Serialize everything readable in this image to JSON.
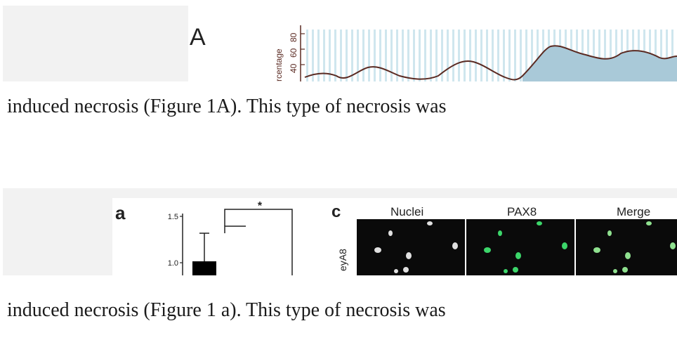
{
  "example_1": {
    "figure": {
      "panel_label": "A",
      "axis_label_fragment": "rcentage",
      "tick_labels": [
        "80",
        "60",
        "40"
      ]
    },
    "caption": "induced necrosis (Figure 1A). This type of necrosis was"
  },
  "example_2": {
    "figure": {
      "panel_a_label": "a",
      "panel_c_label": "c",
      "y_ticks": [
        "1.5",
        "1.0"
      ],
      "significance_mark": "*",
      "column_headers": [
        "Nuclei",
        "PAX8",
        "Merge"
      ],
      "row_label_fragment": "eyA8"
    },
    "caption": "induced necrosis (Figure 1 a). This type of necrosis was"
  },
  "colors": {
    "line": "#5a2a22",
    "fill": "#a9c9d8",
    "stripe": "#cfe6ee",
    "nuclei": "#e0e0e0",
    "pax8": "#3cd66a",
    "micrograph_bg": "#0a0a0a"
  }
}
